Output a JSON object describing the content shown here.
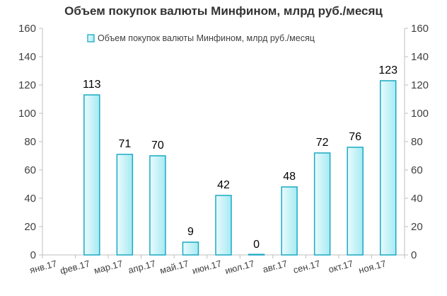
{
  "chart_data": {
    "type": "bar",
    "title": "Объем покупок валюты Минфином, млрд руб./месяц",
    "categories": [
      "янв.17",
      "фев.17",
      "мар.17",
      "апр.17",
      "май.17",
      "июн.17",
      "июл.17",
      "авг.17",
      "сен.17",
      "окт.17",
      "ноя.17"
    ],
    "series": [
      {
        "name": "Объем покупок валюты Минфином, млрд руб./месяц",
        "values": [
          null,
          113,
          71,
          70,
          9,
          42,
          0,
          48,
          72,
          76,
          123
        ],
        "labels": [
          "",
          "113",
          "71",
          "70",
          "9",
          "42",
          "0",
          "48",
          "72",
          "76",
          "123"
        ]
      }
    ],
    "ylim": [
      0,
      160
    ],
    "yticks": [
      "0",
      "20",
      "40",
      "60",
      "80",
      "100",
      "120",
      "140",
      "160"
    ],
    "secondary_yticks": [
      "0",
      "20",
      "40",
      "60",
      "80",
      "100",
      "120",
      "140",
      "160"
    ],
    "xlabel": "",
    "ylabel": "",
    "grid": false,
    "legend": "top-center",
    "colors": {
      "bar_fill_light": "#e9fbfd",
      "bar_fill_dark": "#a6eaf3",
      "bar_stroke": "#1aa9c4",
      "axis": "#bfbfbf"
    }
  }
}
